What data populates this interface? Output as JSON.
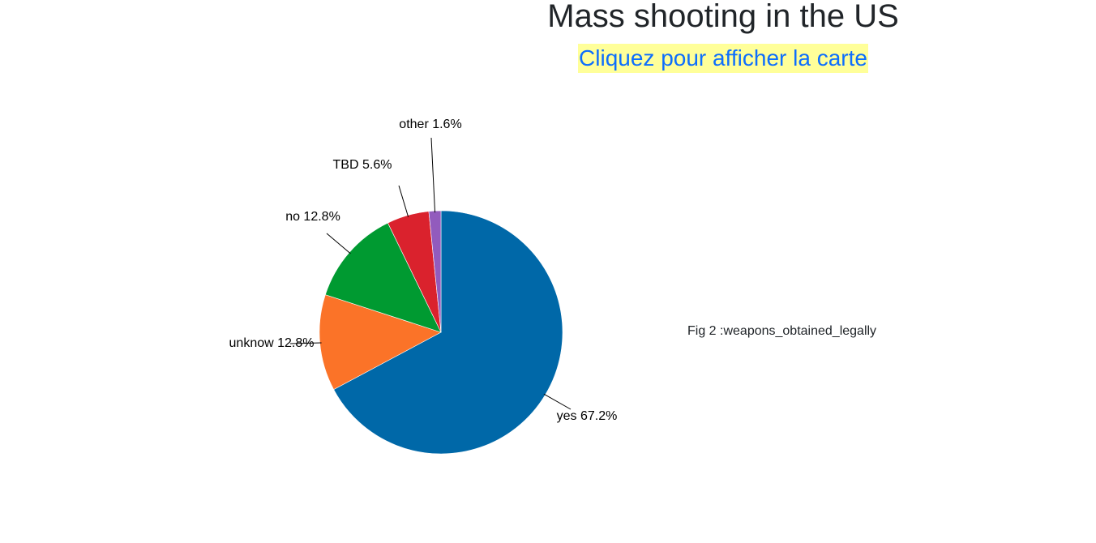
{
  "header": {
    "title": "Mass shooting in the US",
    "map_link": "Cliquez pour afficher la carte"
  },
  "figure": {
    "caption": "Fig 2 :weapons_obtained_legally"
  },
  "chart_data": {
    "type": "pie",
    "slices": [
      {
        "label": "yes",
        "value": 67.2,
        "display": "yes 67.2%",
        "color": "#0068a8"
      },
      {
        "label": "unknow",
        "value": 12.8,
        "display": "unknow 12.8%",
        "color": "#fb7328"
      },
      {
        "label": "no",
        "value": 12.8,
        "display": "no 12.8%",
        "color": "#009a31"
      },
      {
        "label": "TBD",
        "value": 5.6,
        "display": "TBD 5.6%",
        "color": "#da222d"
      },
      {
        "label": "other",
        "value": 1.6,
        "display": "other 1.6%",
        "color": "#925bbd"
      }
    ]
  }
}
